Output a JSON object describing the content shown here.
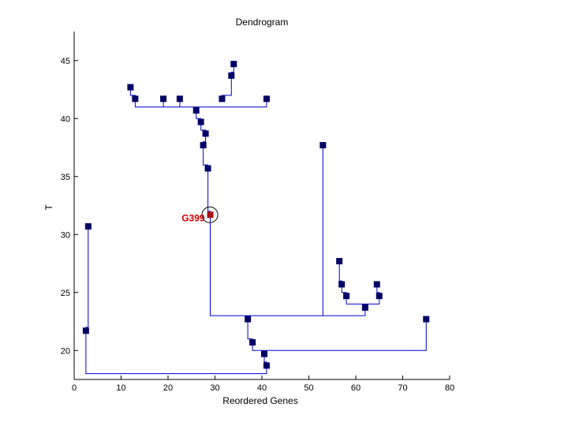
{
  "chart_data": {
    "type": "scatter",
    "title": "Dendrogram",
    "xlabel": "Reordered Genes",
    "ylabel": "T",
    "xlim": [
      0,
      80
    ],
    "ylim": [
      17.5,
      47.5
    ],
    "xticks": [
      0,
      10,
      20,
      30,
      40,
      50,
      60,
      70,
      80
    ],
    "yticks": [
      20,
      25,
      30,
      35,
      40,
      45
    ],
    "line_color": "#0000cc",
    "node_color": "#000066",
    "highlight_color": "#aa1111",
    "highlight_label": "G399",
    "nodes": [
      {
        "x": 12,
        "y": 42.7
      },
      {
        "x": 13,
        "y": 41.7
      },
      {
        "x": 19,
        "y": 41.7
      },
      {
        "x": 22.5,
        "y": 41.7
      },
      {
        "x": 31.5,
        "y": 41.7
      },
      {
        "x": 33.5,
        "y": 43.7
      },
      {
        "x": 34,
        "y": 44.7
      },
      {
        "x": 41,
        "y": 41.7
      },
      {
        "x": 26,
        "y": 40.7
      },
      {
        "x": 27,
        "y": 39.7
      },
      {
        "x": 28,
        "y": 38.7
      },
      {
        "x": 27.5,
        "y": 37.7
      },
      {
        "x": 28.5,
        "y": 35.7
      },
      {
        "x": 29,
        "y": 31.7
      },
      {
        "x": 53,
        "y": 37.7
      },
      {
        "x": 3,
        "y": 30.7
      },
      {
        "x": 2.5,
        "y": 21.7
      },
      {
        "x": 56.5,
        "y": 27.7
      },
      {
        "x": 57,
        "y": 25.7
      },
      {
        "x": 58,
        "y": 24.7
      },
      {
        "x": 62,
        "y": 23.7
      },
      {
        "x": 64.5,
        "y": 25.7
      },
      {
        "x": 65,
        "y": 24.7
      },
      {
        "x": 37,
        "y": 22.7
      },
      {
        "x": 38,
        "y": 20.7
      },
      {
        "x": 40.5,
        "y": 19.7
      },
      {
        "x": 41,
        "y": 18.7
      },
      {
        "x": 75,
        "y": 22.7
      }
    ],
    "highlight_index": 13,
    "segments": [
      [
        [
          12,
          42.7
        ],
        [
          12,
          42
        ],
        [
          13,
          42
        ],
        [
          13,
          41.7
        ]
      ],
      [
        [
          13,
          41.7
        ],
        [
          13,
          41
        ],
        [
          41,
          41
        ],
        [
          41,
          41.7
        ]
      ],
      [
        [
          19,
          41.7
        ],
        [
          19,
          41
        ]
      ],
      [
        [
          22.5,
          41.7
        ],
        [
          22.5,
          41
        ]
      ],
      [
        [
          31.5,
          41.7
        ],
        [
          31.5,
          42
        ],
        [
          33.5,
          42
        ],
        [
          33.5,
          43.7
        ]
      ],
      [
        [
          33.5,
          43.7
        ],
        [
          33.5,
          44
        ],
        [
          34,
          44
        ],
        [
          34,
          44.7
        ]
      ],
      [
        [
          26,
          41
        ],
        [
          26,
          40.7
        ]
      ],
      [
        [
          26,
          40.7
        ],
        [
          26,
          40
        ],
        [
          27,
          40
        ],
        [
          27,
          39.7
        ]
      ],
      [
        [
          27,
          39.7
        ],
        [
          27,
          39
        ],
        [
          28,
          39
        ],
        [
          28,
          38.7
        ]
      ],
      [
        [
          28,
          38.7
        ],
        [
          28,
          38
        ],
        [
          27.5,
          38
        ],
        [
          27.5,
          37.7
        ]
      ],
      [
        [
          27.5,
          37.7
        ],
        [
          27.5,
          36
        ],
        [
          28.5,
          36
        ],
        [
          28.5,
          35.7
        ]
      ],
      [
        [
          28.5,
          35.7
        ],
        [
          28.5,
          32
        ],
        [
          29,
          32
        ],
        [
          29,
          31.7
        ]
      ],
      [
        [
          29,
          31.7
        ],
        [
          29,
          23
        ],
        [
          62,
          23
        ],
        [
          62,
          23.7
        ]
      ],
      [
        [
          53,
          37.7
        ],
        [
          53,
          23
        ]
      ],
      [
        [
          56.5,
          27.7
        ],
        [
          56.5,
          26
        ],
        [
          57,
          26
        ],
        [
          57,
          25.7
        ]
      ],
      [
        [
          57,
          25.7
        ],
        [
          57,
          25
        ],
        [
          58,
          25
        ],
        [
          58,
          24.7
        ]
      ],
      [
        [
          58,
          24.7
        ],
        [
          58,
          24
        ],
        [
          65,
          24
        ],
        [
          65,
          24.7
        ]
      ],
      [
        [
          64.5,
          25.7
        ],
        [
          64.5,
          25
        ],
        [
          65,
          25
        ],
        [
          65,
          24.7
        ]
      ],
      [
        [
          37,
          22.7
        ],
        [
          37,
          21
        ],
        [
          38,
          21
        ],
        [
          38,
          20.7
        ]
      ],
      [
        [
          38,
          20.7
        ],
        [
          38,
          20
        ],
        [
          75,
          20
        ],
        [
          75,
          22.7
        ]
      ],
      [
        [
          40.5,
          19.7
        ],
        [
          40.5,
          19
        ],
        [
          41,
          19
        ],
        [
          41,
          18.7
        ]
      ],
      [
        [
          41,
          18.7
        ],
        [
          41,
          18
        ],
        [
          2.5,
          18
        ],
        [
          2.5,
          21.7
        ]
      ],
      [
        [
          2.5,
          21.7
        ],
        [
          2.5,
          22
        ],
        [
          3,
          22
        ],
        [
          3,
          30.7
        ]
      ]
    ]
  }
}
